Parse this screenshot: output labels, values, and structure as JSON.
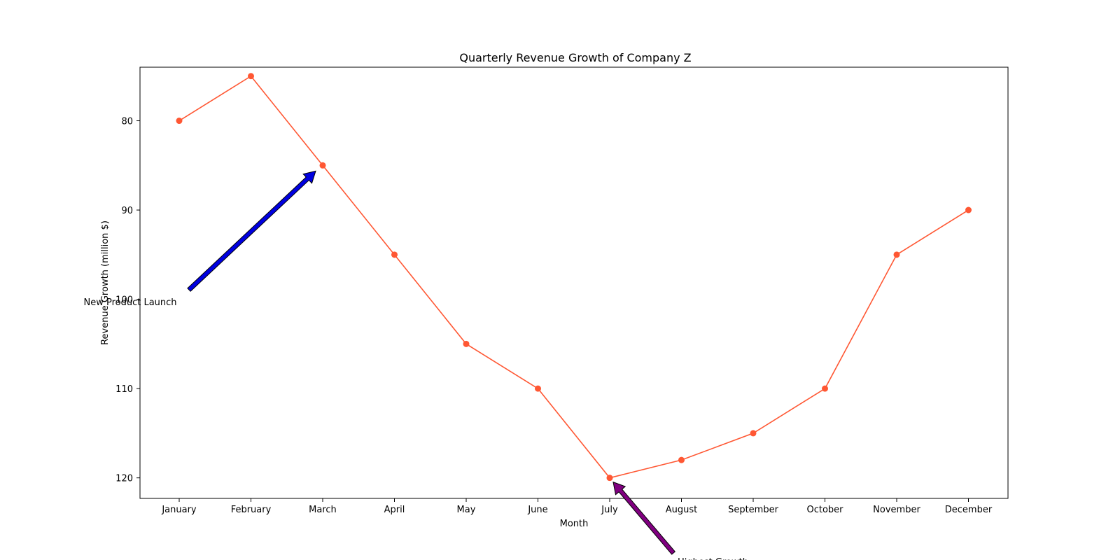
{
  "chart_data": {
    "type": "line",
    "title": "Quarterly Revenue Growth of Company Z",
    "xlabel": "Month",
    "ylabel": "Revenue Growth (million $)",
    "categories": [
      "January",
      "February",
      "March",
      "April",
      "May",
      "June",
      "July",
      "August",
      "September",
      "October",
      "November",
      "December"
    ],
    "series": [
      {
        "values": [
          80,
          75,
          85,
          95,
          105,
          110,
          120,
          118,
          115,
          110,
          95,
          90
        ],
        "color": "#ff5733",
        "marker": "circle"
      }
    ],
    "y_inverted": true,
    "ylim": [
      74,
      122.3
    ],
    "yticks": [
      80,
      90,
      100,
      110,
      120
    ],
    "grid": false,
    "annotations": [
      {
        "text": "New Product Launch",
        "target_category": "March",
        "target_value": 85,
        "arrow_color": "#0000e0"
      },
      {
        "text": "Highest Growth",
        "target_category": "July",
        "target_value": 120,
        "arrow_color": "#800080"
      }
    ]
  }
}
